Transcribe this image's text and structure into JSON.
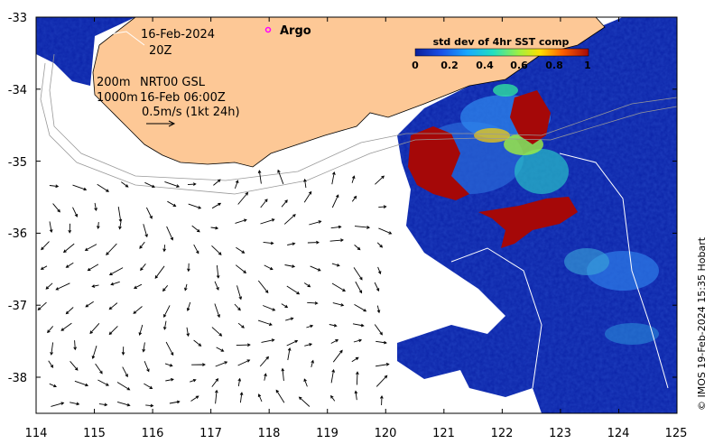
{
  "map": {
    "date": "16-Feb-2024",
    "time": "20Z",
    "depth_label": "200m",
    "contour_label": "1000m",
    "product": "NRT00 GSL",
    "product_time": "16-Feb 06:00Z",
    "scale_label": "0.5m/s (1kt 24h)",
    "argo_label": "Argo",
    "credit": "© IMOS 19-Feb-2024 15:35 Hobart",
    "x_ticks": [
      "114",
      "115",
      "116",
      "117",
      "118",
      "119",
      "120",
      "121",
      "122",
      "123",
      "124",
      "125"
    ],
    "y_ticks": [
      "-33",
      "-34",
      "-35",
      "-36",
      "-37",
      "-38"
    ],
    "lon_range": [
      114,
      125
    ],
    "lat_range": [
      -38.5,
      -33
    ],
    "colorbar": {
      "title": "std dev of 4hr SST comp",
      "ticks": [
        "0",
        "0.2",
        "0.4",
        "0.6",
        "0.8",
        "1"
      ],
      "range": [
        0,
        1
      ]
    },
    "colors": {
      "land": "#fdc896",
      "low": "#0a1e9a",
      "high": "#a50808",
      "argo_marker": "#ff00ff"
    }
  }
}
